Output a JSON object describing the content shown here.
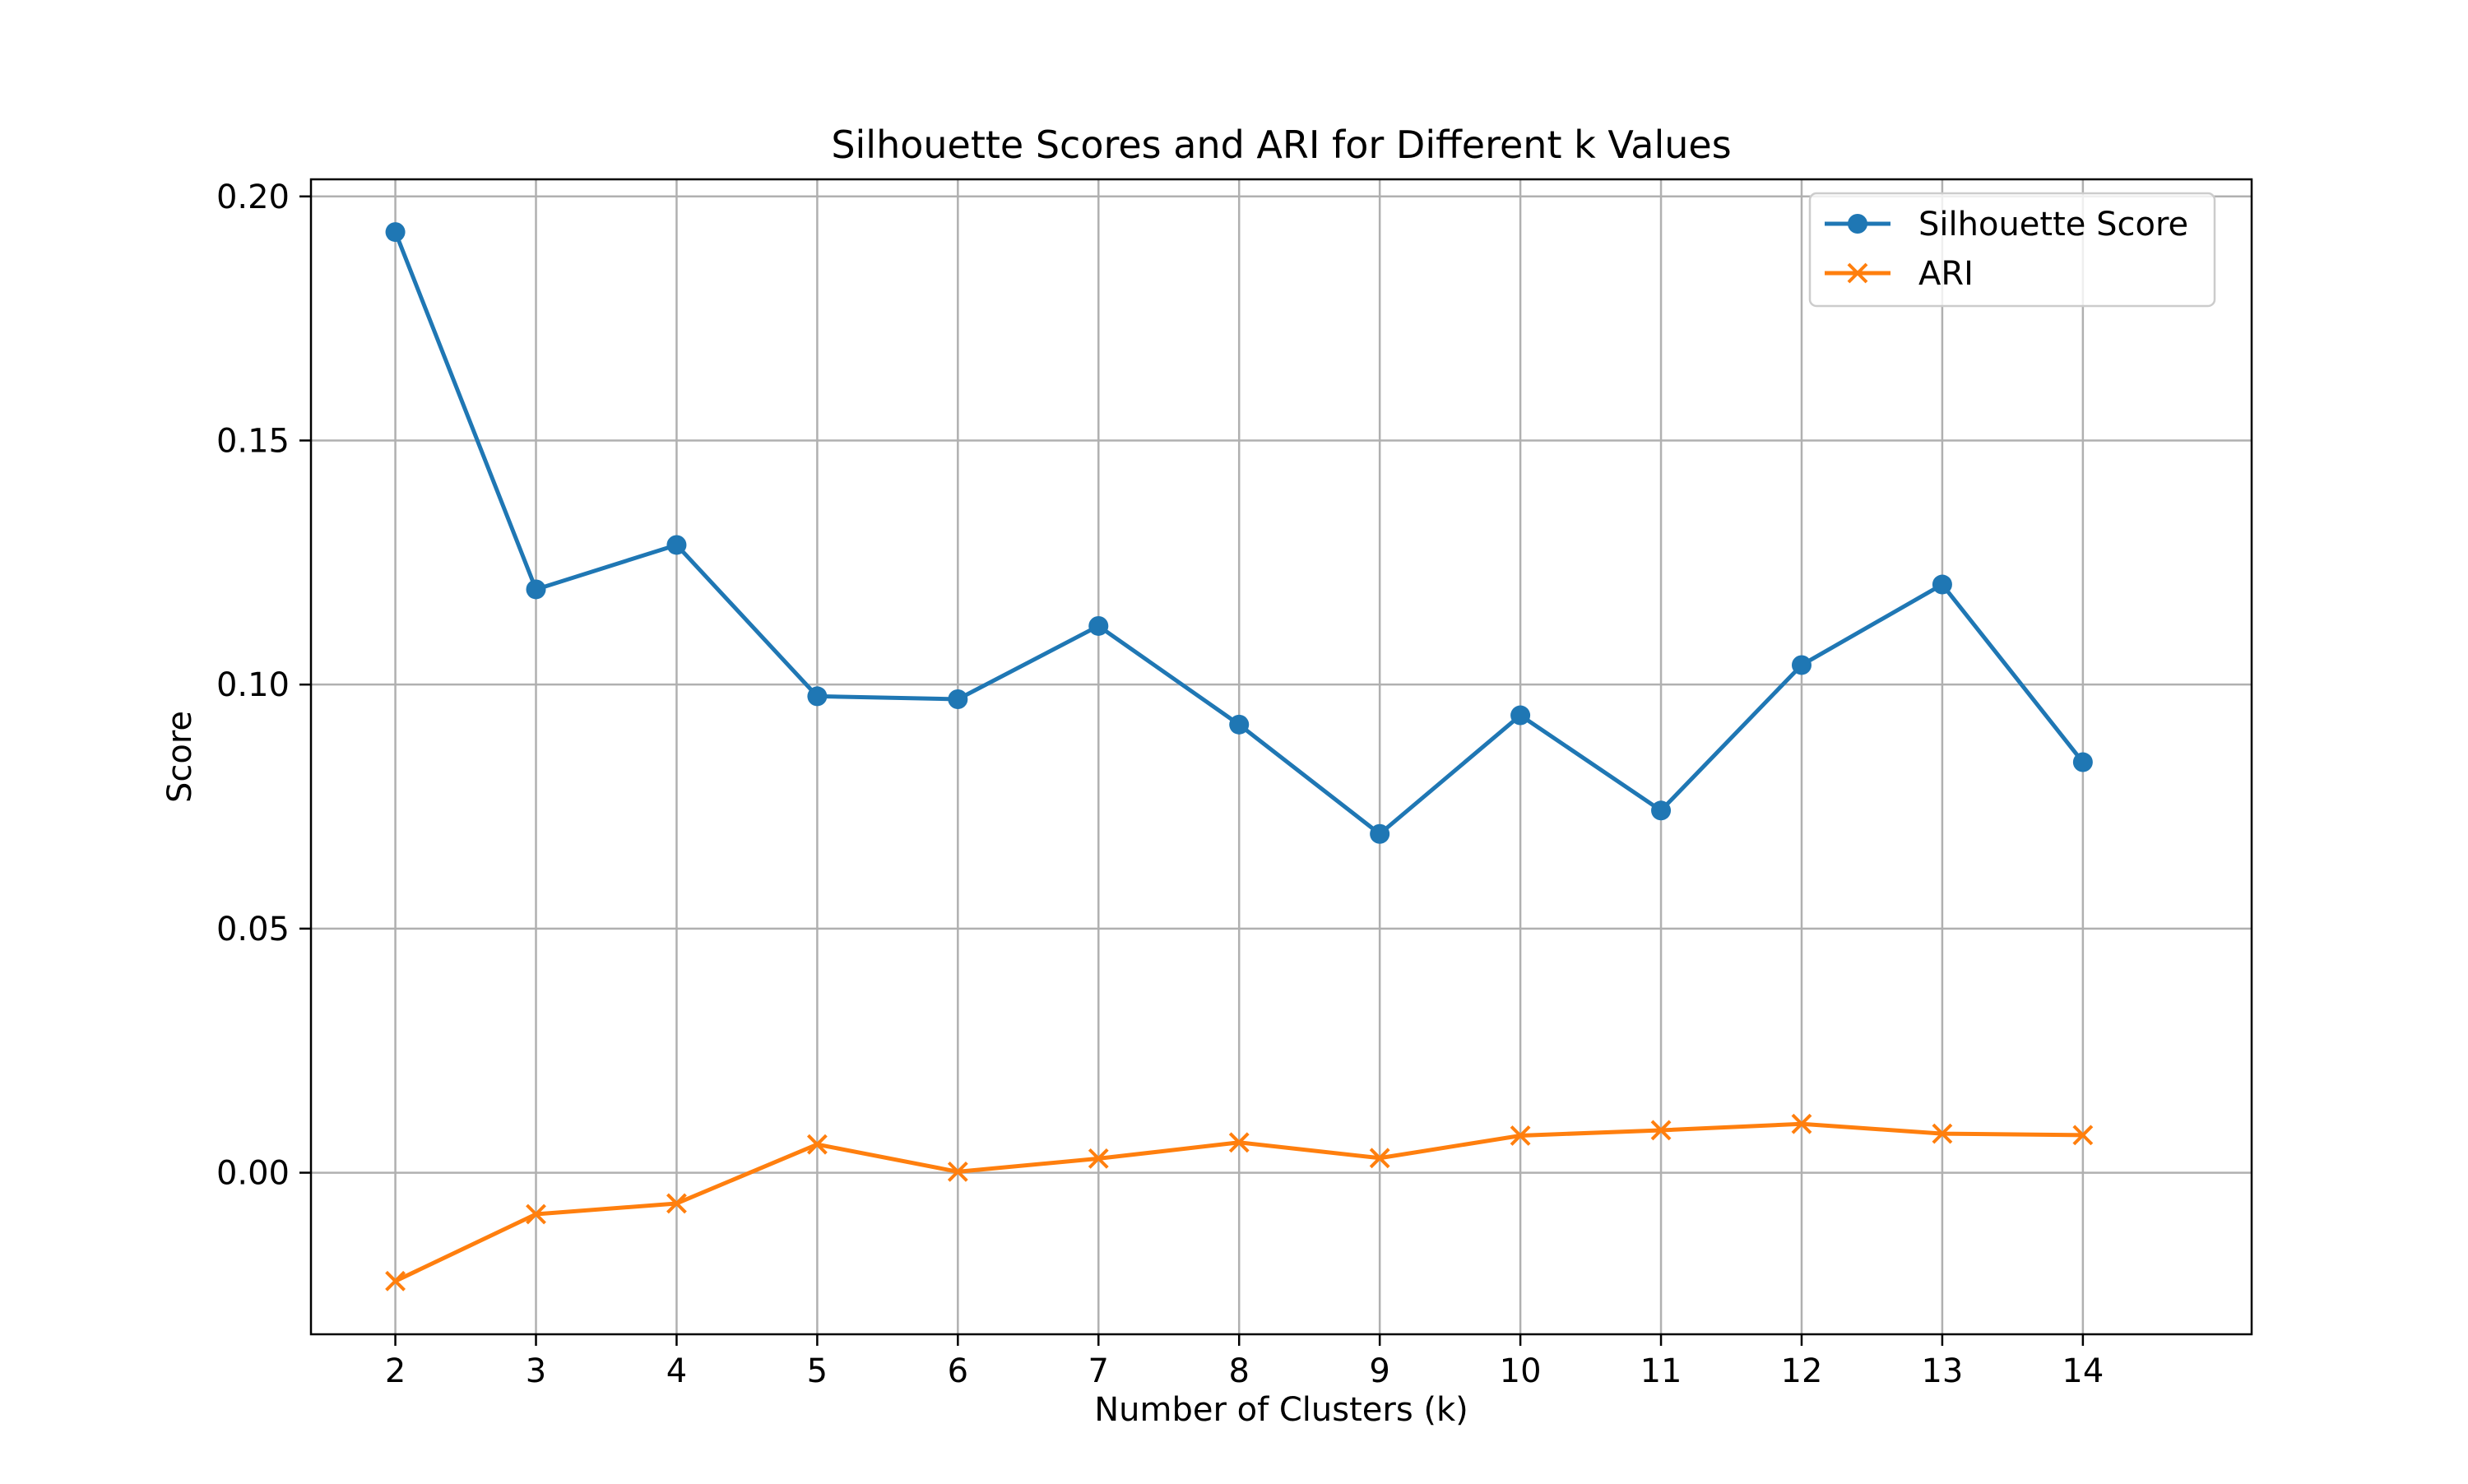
{
  "chart_data": {
    "type": "line",
    "title": "Silhouette Scores and ARI for Different k Values",
    "xlabel": "Number of Clusters (k)",
    "ylabel": "Score",
    "x": [
      2,
      3,
      4,
      5,
      6,
      7,
      8,
      9,
      10,
      11,
      12,
      13,
      14
    ],
    "xlim": [
      1.4,
      15.2
    ],
    "ylim": [
      -0.0331,
      0.2035
    ],
    "yticks": [
      0.0,
      0.05,
      0.1,
      0.15,
      0.2
    ],
    "ytick_labels": [
      "0.00",
      "0.05",
      "0.10",
      "0.15",
      "0.20"
    ],
    "grid": true,
    "legend_position": "top-right",
    "series": [
      {
        "name": "Silhouette Score",
        "color": "#1f77b4",
        "marker": "circle",
        "values": [
          0.1927,
          0.1195,
          0.1286,
          0.0976,
          0.097,
          0.112,
          0.0918,
          0.0694,
          0.0937,
          0.0742,
          0.104,
          0.1205,
          0.0841
        ]
      },
      {
        "name": "ARI",
        "color": "#ff7f0e",
        "marker": "x",
        "values": [
          -0.0222,
          -0.0085,
          -0.0063,
          0.0058,
          0.0002,
          0.0029,
          0.0062,
          0.003,
          0.0076,
          0.0087,
          0.01,
          0.008,
          0.0077
        ]
      }
    ]
  }
}
